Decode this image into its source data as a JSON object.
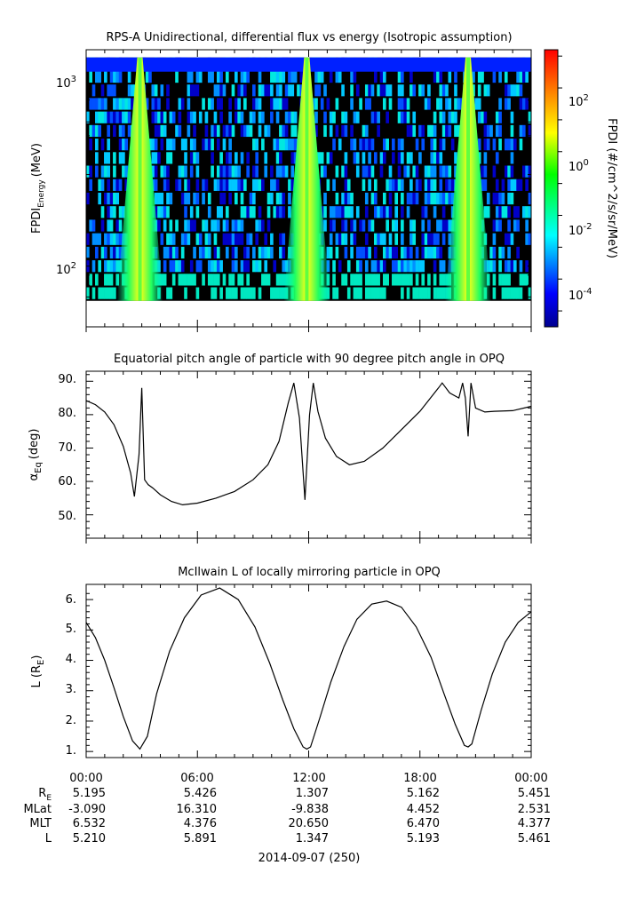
{
  "panel1": {
    "title": "RPS-A Unidirectional, differential flux vs energy (Isotropic assumption)",
    "ylabel_main": "FPDI",
    "ylabel_sub": "Energy",
    "ylabel_unit": "(MeV)",
    "ytick_base": "10",
    "ytick_exps": [
      "3",
      "2"
    ],
    "colorbar_label": "FPDI (#/cm^2/s/sr/MeV)",
    "colorbar_exps": [
      "2",
      "0",
      "-2",
      "-4"
    ]
  },
  "panel2": {
    "title": "Equatorial pitch angle of particle with 90 degree pitch angle in OPQ",
    "ylabel_main": "α",
    "ylabel_sub": "Eq",
    "ylabel_unit": "(deg)",
    "yticks": [
      "90.",
      "80.",
      "70.",
      "60.",
      "50."
    ]
  },
  "panel3": {
    "title": "McIlwain L of locally mirroring particle in OPQ",
    "ylabel_main": "L (R",
    "ylabel_sub": "E",
    "ylabel_unit": ")",
    "yticks": [
      "6.",
      "5.",
      "4.",
      "3.",
      "2.",
      "1."
    ]
  },
  "xaxis": {
    "ticks": [
      "00:00",
      "06:00",
      "12:00",
      "18:00",
      "00:00"
    ],
    "date_label": "2014-09-07 (250)"
  },
  "ephemeris": {
    "labels": [
      "R",
      "MLat",
      "MLT",
      "L"
    ],
    "re_sub": "E",
    "rows": [
      [
        "5.195",
        "5.426",
        "1.307",
        "5.162",
        "5.451"
      ],
      [
        "-3.090",
        "16.310",
        "-9.838",
        "4.452",
        "2.531"
      ],
      [
        "6.532",
        "4.376",
        "20.650",
        "6.470",
        "4.377"
      ],
      [
        "5.210",
        "5.891",
        "1.347",
        "5.193",
        "5.461"
      ]
    ]
  },
  "chart_data": [
    {
      "type": "heatmap",
      "title": "RPS-A Unidirectional, differential flux vs energy (Isotropic assumption)",
      "xlabel": "",
      "ylabel": "FPDI Energy (MeV)",
      "x_range_hours": [
        0,
        24
      ],
      "y_scale": "log",
      "y_range_mev": [
        57,
        1400
      ],
      "colorbar": {
        "label": "FPDI (#/cm^2/s/sr/MeV)",
        "scale": "log",
        "range": [
          1e-05,
          1000
        ],
        "colormap": "rainbow"
      },
      "flux_peaks_hours": [
        2.9,
        11.9,
        20.6
      ]
    },
    {
      "type": "line",
      "title": "Equatorial pitch angle of particle with 90 degree pitch angle in OPQ",
      "ylabel": "αEq (deg)",
      "ylim": [
        43,
        93
      ],
      "x_hours": [
        0,
        0.5,
        1,
        1.5,
        2,
        2.4,
        2.6,
        2.85,
        3.0,
        3.15,
        3.35,
        3.6,
        4,
        4.6,
        5.2,
        6,
        7,
        8,
        9,
        9.8,
        10.4,
        10.9,
        11.2,
        11.5,
        11.8,
        12.05,
        12.25,
        12.5,
        12.9,
        13.5,
        14.2,
        15,
        16,
        17,
        18,
        19,
        19.2,
        19.6,
        20.1,
        20.3,
        20.45,
        20.6,
        20.75,
        21.0,
        21.5,
        22,
        23,
        24
      ],
      "y_deg": [
        84.2,
        83.0,
        80.8,
        77.0,
        70.5,
        62.5,
        55.5,
        68,
        88,
        60.5,
        59,
        58,
        56,
        54,
        53,
        53.5,
        55,
        57,
        60.5,
        65,
        72,
        83.5,
        89.5,
        79,
        54.5,
        80,
        89.5,
        81,
        73,
        67.5,
        65,
        66,
        70,
        75.5,
        81,
        88,
        89.5,
        86.5,
        85,
        89.5,
        85,
        73.5,
        89.5,
        82,
        80.8,
        81,
        81.2,
        82.5
      ]
    },
    {
      "type": "line",
      "title": "McIlwain L of locally mirroring particle in OPQ",
      "ylabel": "L (RE)",
      "ylim": [
        0.8,
        6.5
      ],
      "x_hours": [
        0,
        0.5,
        1,
        1.5,
        2,
        2.5,
        2.9,
        3.3,
        3.8,
        4.5,
        5.3,
        6.2,
        7.2,
        8.2,
        9.1,
        9.9,
        10.6,
        11.2,
        11.7,
        11.9,
        12.1,
        12.6,
        13.2,
        13.9,
        14.6,
        15.4,
        16.2,
        17,
        17.8,
        18.6,
        19.3,
        19.9,
        20.4,
        20.6,
        20.8,
        21.3,
        21.9,
        22.6,
        23.3,
        24
      ],
      "y_re": [
        5.25,
        4.75,
        4.0,
        3.1,
        2.15,
        1.35,
        1.08,
        1.5,
        2.9,
        4.3,
        5.4,
        6.15,
        6.38,
        6.0,
        5.1,
        3.9,
        2.7,
        1.75,
        1.15,
        1.08,
        1.15,
        2.1,
        3.3,
        4.45,
        5.35,
        5.85,
        5.95,
        5.75,
        5.1,
        4.1,
        2.9,
        1.9,
        1.2,
        1.15,
        1.25,
        2.35,
        3.55,
        4.6,
        5.25,
        5.6
      ]
    }
  ]
}
